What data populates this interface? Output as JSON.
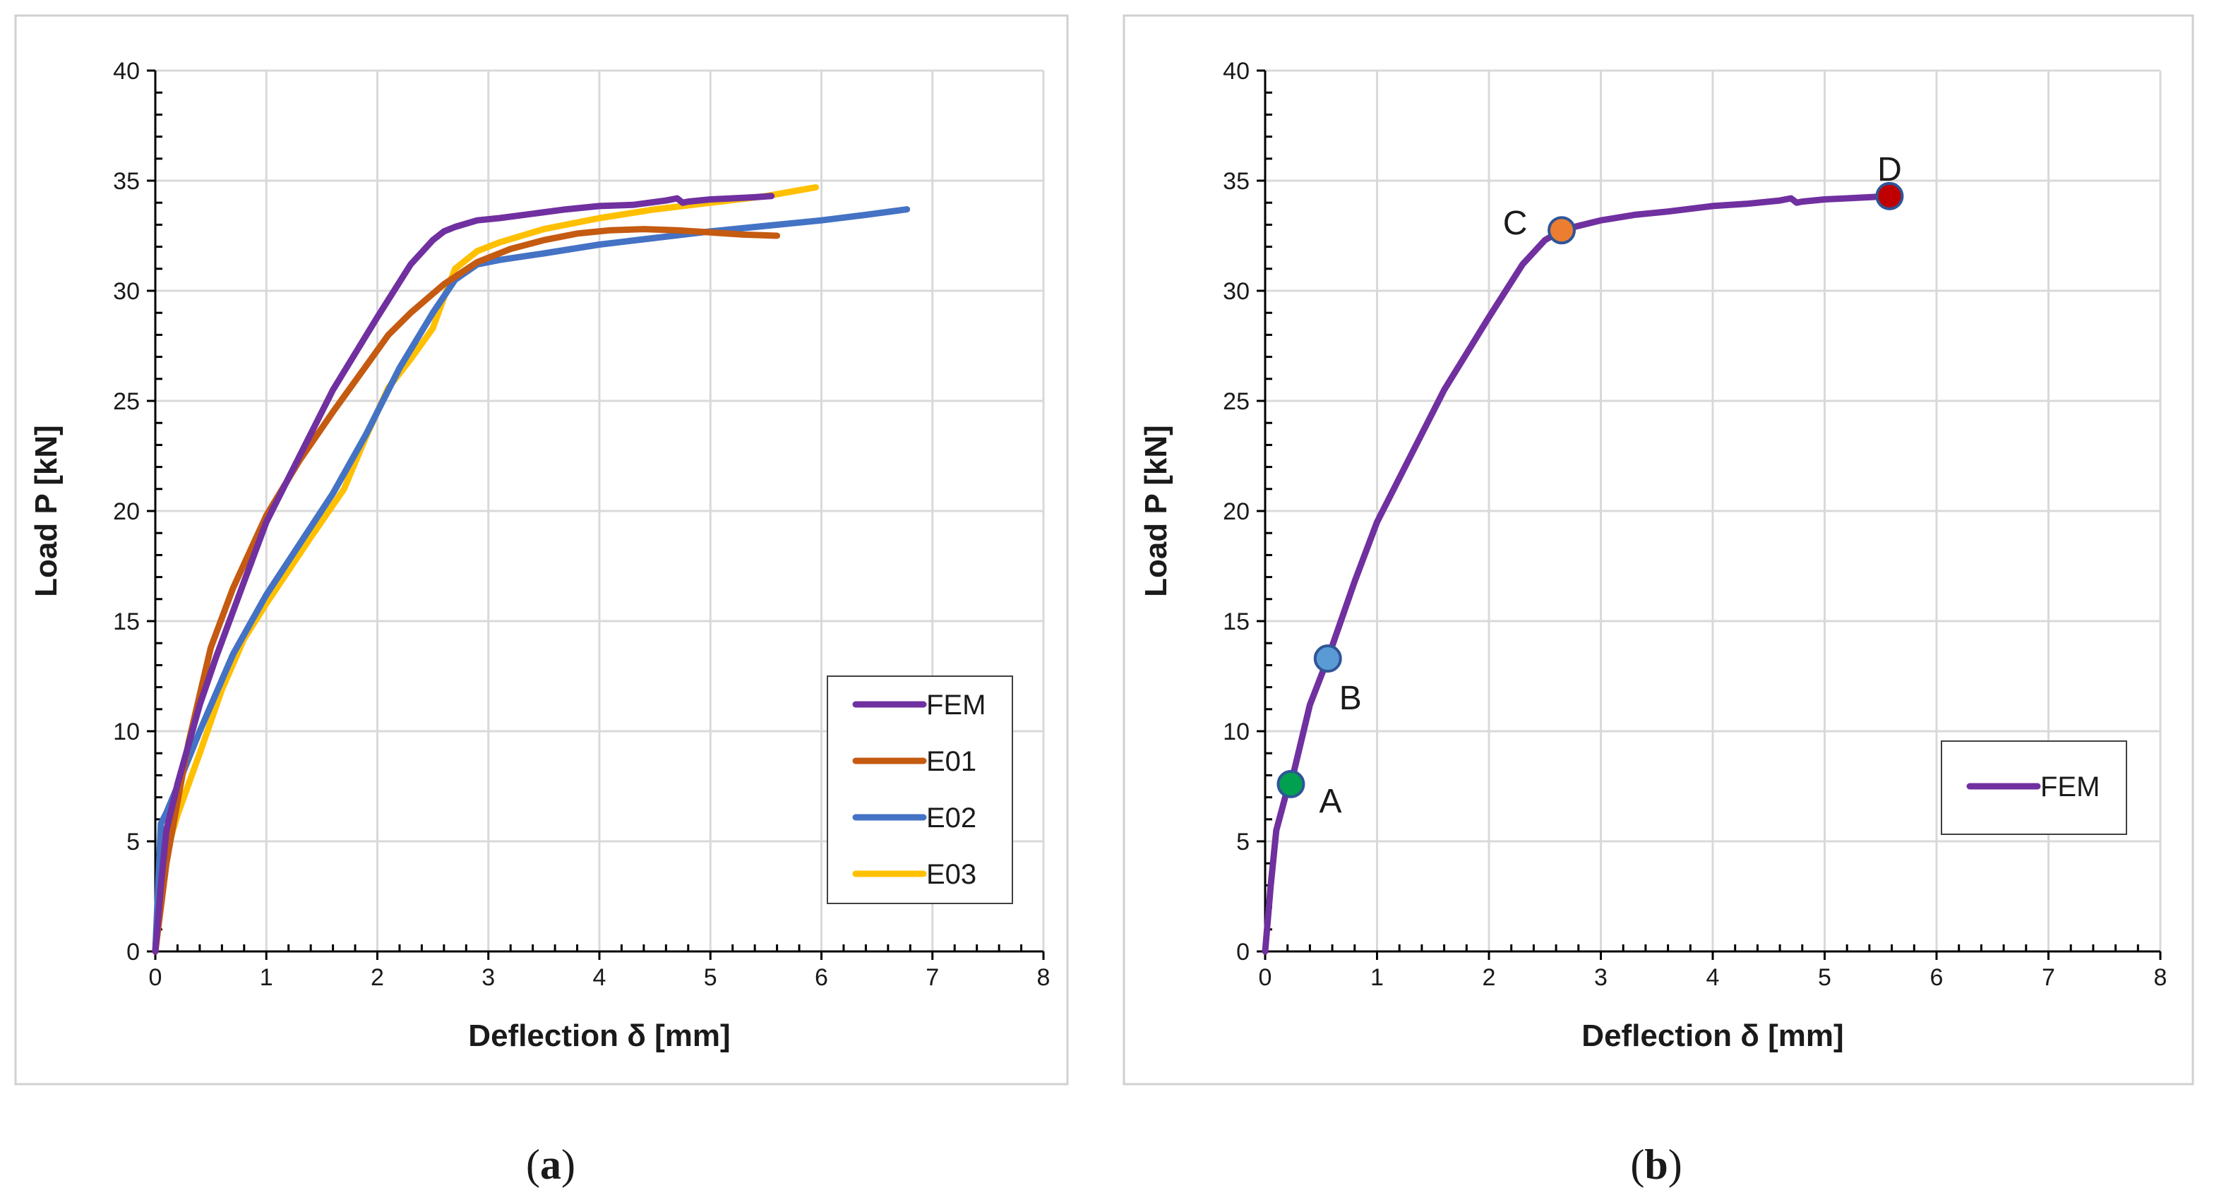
{
  "chart_data": [
    {
      "panel": "(a)",
      "panel_letter": "a",
      "type": "line",
      "title": "",
      "xlabel": "Deflection δ [mm]",
      "ylabel": "Load P [kN]",
      "xlim": [
        0,
        8
      ],
      "ylim": [
        0,
        40
      ],
      "xticks": [
        0,
        1,
        2,
        3,
        4,
        5,
        6,
        7,
        8
      ],
      "yticks": [
        0,
        5,
        10,
        15,
        20,
        25,
        30,
        35,
        40
      ],
      "grid": true,
      "legend": "bottom-right",
      "series": [
        {
          "name": "FEM",
          "color": "#7030a0",
          "x": [
            0,
            0.05,
            0.1,
            0.2,
            0.4,
            0.55,
            0.8,
            1.0,
            1.3,
            1.6,
            2.0,
            2.3,
            2.5,
            2.6,
            2.7,
            2.9,
            3.1,
            3.4,
            3.7,
            4.0,
            4.3,
            4.6,
            4.7,
            4.75,
            4.8,
            5.0,
            5.2,
            5.4,
            5.55
          ],
          "y": [
            0,
            3.0,
            5.5,
            7.6,
            11.2,
            13.4,
            16.8,
            19.5,
            22.5,
            25.5,
            28.8,
            31.2,
            32.3,
            32.7,
            32.9,
            33.2,
            33.3,
            33.5,
            33.7,
            33.85,
            33.9,
            34.1,
            34.2,
            34.0,
            34.05,
            34.15,
            34.2,
            34.25,
            34.3
          ]
        },
        {
          "name": "E01",
          "color": "#c55a11",
          "x": [
            0,
            0.1,
            0.2,
            0.3,
            0.5,
            0.7,
            1.0,
            1.3,
            1.6,
            1.9,
            2.1,
            2.3,
            2.6,
            2.9,
            3.2,
            3.5,
            3.8,
            4.1,
            4.4,
            4.7,
            5.0,
            5.3,
            5.6
          ],
          "y": [
            0,
            4.0,
            6.8,
            9.5,
            13.8,
            16.5,
            19.8,
            22.3,
            24.5,
            26.6,
            28.0,
            29.0,
            30.3,
            31.3,
            31.9,
            32.3,
            32.6,
            32.75,
            32.8,
            32.75,
            32.65,
            32.55,
            32.5
          ]
        },
        {
          "name": "E02",
          "color": "#4472c4",
          "x": [
            0,
            0.05,
            0.1,
            0.2,
            0.4,
            0.7,
            1.0,
            1.3,
            1.6,
            1.9,
            2.2,
            2.5,
            2.7,
            2.9,
            3.1,
            3.5,
            4.0,
            4.5,
            5.0,
            5.5,
            6.0,
            6.4,
            6.77
          ],
          "y": [
            0,
            5.8,
            6.3,
            7.5,
            10.0,
            13.5,
            16.2,
            18.5,
            20.8,
            23.5,
            26.5,
            29.0,
            30.5,
            31.2,
            31.4,
            31.7,
            32.1,
            32.4,
            32.7,
            32.95,
            33.2,
            33.45,
            33.7
          ]
        },
        {
          "name": "E03",
          "color": "#ffc000",
          "x": [
            0,
            0.1,
            0.2,
            0.4,
            0.6,
            0.8,
            1.0,
            1.2,
            1.4,
            1.7,
            1.9,
            2.1,
            2.3,
            2.5,
            2.6,
            2.7,
            2.9,
            3.1,
            3.5,
            4.0,
            4.5,
            5.0,
            5.5,
            5.95
          ],
          "y": [
            0,
            4.5,
            6.2,
            9.0,
            11.9,
            14.2,
            15.8,
            17.3,
            18.8,
            21.0,
            23.4,
            25.6,
            26.9,
            28.3,
            29.7,
            31.0,
            31.8,
            32.2,
            32.8,
            33.3,
            33.7,
            34.0,
            34.3,
            34.7
          ]
        }
      ]
    },
    {
      "panel": "(b)",
      "panel_letter": "b",
      "type": "line",
      "title": "",
      "xlabel": "Deflection δ [mm]",
      "ylabel": "Load P [kN]",
      "xlim": [
        0,
        8
      ],
      "ylim": [
        0,
        40
      ],
      "xticks": [
        0,
        1,
        2,
        3,
        4,
        5,
        6,
        7,
        8
      ],
      "yticks": [
        0,
        5,
        10,
        15,
        20,
        25,
        30,
        35,
        40
      ],
      "grid": true,
      "legend": "bottom-right",
      "series": [
        {
          "name": "FEM",
          "color": "#7030a0",
          "x": [
            0,
            0.05,
            0.1,
            0.2,
            0.23,
            0.4,
            0.56,
            0.8,
            1.0,
            1.3,
            1.6,
            2.0,
            2.3,
            2.5,
            2.65,
            2.8,
            3.0,
            3.3,
            3.6,
            4.0,
            4.3,
            4.6,
            4.7,
            4.75,
            4.8,
            5.0,
            5.2,
            5.4,
            5.58
          ],
          "y": [
            0,
            3.0,
            5.5,
            7.4,
            7.6,
            11.2,
            13.3,
            16.8,
            19.5,
            22.5,
            25.5,
            28.8,
            31.2,
            32.3,
            32.75,
            32.95,
            33.2,
            33.45,
            33.6,
            33.85,
            33.95,
            34.1,
            34.2,
            34.0,
            34.05,
            34.15,
            34.2,
            34.25,
            34.3
          ]
        }
      ],
      "points": [
        {
          "label": "A",
          "x": 0.23,
          "y": 7.6,
          "color": "#00a050"
        },
        {
          "label": "B",
          "x": 0.56,
          "y": 13.3,
          "color": "#5b9bd5"
        },
        {
          "label": "C",
          "x": 2.65,
          "y": 32.75,
          "color": "#ed7d31"
        },
        {
          "label": "D",
          "x": 5.58,
          "y": 34.3,
          "color": "#c00000"
        }
      ]
    }
  ]
}
